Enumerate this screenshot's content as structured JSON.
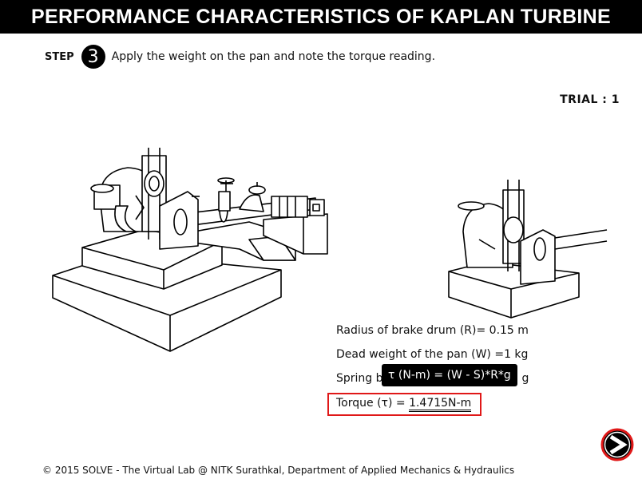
{
  "title": "PERFORMANCE CHARACTERISTICS OF KAPLAN TURBINE",
  "step": {
    "label": "STEP",
    "number": "3",
    "instruction": "Apply the weight on the pan and note the torque reading."
  },
  "trial": "TRIAL : 1",
  "readings": {
    "radius": "Radius of brake drum (R)= 0.15 m",
    "dead_weight": "Dead weight of the pan (W) =1 kg",
    "spring_prefix": "Spring b",
    "spring_suffix": "g",
    "torque_label": "Torque (τ) = ",
    "torque_value": "1.4715N-m"
  },
  "tooltip": "τ (N-m) = (W - S)*R*g",
  "footer": "© 2015 SOLVE - The Virtual Lab @ NITK Surathkal, Department of Applied Mechanics & Hydraulics",
  "colors": {
    "title_bg": "#000000",
    "highlight_border": "#e01818"
  },
  "icons": {
    "next": "arrow-right-circle-icon"
  }
}
